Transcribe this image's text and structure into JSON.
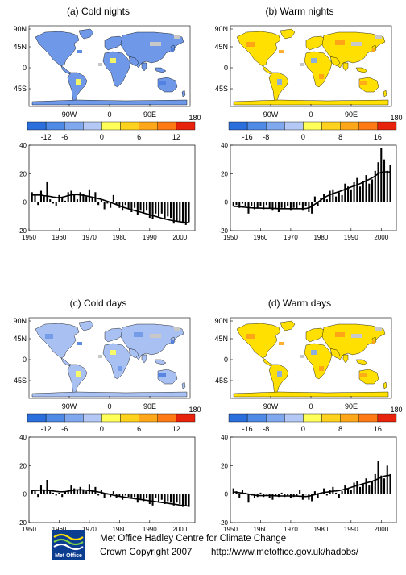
{
  "colors": {
    "cold_scale": [
      "#2a6fdb",
      "#4f8ae6",
      "#80a8ef",
      "#b3c8f5",
      "#ffff5a",
      "#ffd21f",
      "#ffa71a",
      "#ff7a14",
      "#e8230d"
    ],
    "warm_scale": [
      "#2a6fdb",
      "#4f8ae6",
      "#80a8ef",
      "#b3c8f5",
      "#ffff5a",
      "#ffd21f",
      "#ffa71a",
      "#ff7a14",
      "#e8230d"
    ],
    "blue_land": "#6f98e8",
    "blue_land_light": "#a9c1f2",
    "yellow_land": "#ffe000",
    "orange_land": "#ff9e18",
    "ocean": "#ffffff"
  },
  "panels": [
    {
      "title": "(a) Cold nights",
      "theme": "cold",
      "colorbar_ticks": [
        "-12",
        "-6",
        "0",
        "6",
        "12"
      ],
      "colorbar_end": "180",
      "lat_labels": [
        "90N",
        "45N",
        "0",
        "45S"
      ],
      "lon_labels": [
        "90W",
        "0",
        "90E"
      ],
      "chart_data": {
        "type": "bar",
        "x": [
          1951,
          1952,
          1953,
          1954,
          1955,
          1956,
          1957,
          1958,
          1959,
          1960,
          1961,
          1962,
          1963,
          1964,
          1965,
          1966,
          1967,
          1968,
          1969,
          1970,
          1971,
          1972,
          1973,
          1974,
          1975,
          1976,
          1977,
          1978,
          1979,
          1980,
          1981,
          1982,
          1983,
          1984,
          1985,
          1986,
          1987,
          1988,
          1989,
          1990,
          1991,
          1992,
          1993,
          1994,
          1995,
          1996,
          1997,
          1998,
          1999,
          2000,
          2001,
          2002,
          2003
        ],
        "values": [
          7,
          6,
          -2,
          8,
          4,
          14,
          2,
          -1,
          -3,
          5,
          3,
          1,
          7,
          8,
          6,
          2,
          7,
          6,
          4,
          9,
          3,
          7,
          -2,
          2,
          -5,
          -1,
          -4,
          5,
          -2,
          -4,
          -6,
          -2,
          -5,
          -7,
          -4,
          -9,
          -6,
          -8,
          -6,
          -11,
          -12,
          -8,
          -10,
          -8,
          -12,
          -10,
          -11,
          -15,
          -13,
          -14,
          -15,
          -16,
          -14
        ],
        "smooth": [
          5,
          5,
          5,
          5,
          4.5,
          4.3,
          4,
          3.6,
          3.3,
          3.2,
          3.5,
          4,
          4.6,
          5,
          5.3,
          5.3,
          5.1,
          4.8,
          4.4,
          4,
          3.5,
          3,
          2.5,
          2,
          1.3,
          0.6,
          -0.2,
          -1,
          -1.8,
          -2.6,
          -3.4,
          -4.1,
          -4.7,
          -5.3,
          -5.9,
          -6.5,
          -7,
          -7.6,
          -8.2,
          -8.8,
          -9.4,
          -10,
          -10.6,
          -11.2,
          -11.8,
          -12.3,
          -12.7,
          -13.1,
          -13.4,
          -13.7,
          -14,
          -14.2,
          -14.3
        ],
        "ylim": [
          -20,
          40
        ],
        "yticks": [
          "40",
          "20",
          "0",
          "-20"
        ],
        "xticks": [
          "1950",
          "1960",
          "1970",
          "1980",
          "1990",
          "2000"
        ]
      }
    },
    {
      "title": "(b) Warm nights",
      "theme": "warm",
      "colorbar_ticks": [
        "-16",
        "-8",
        "0",
        "8",
        "16"
      ],
      "colorbar_end": "180",
      "lat_labels": [
        "90N",
        "45N",
        "0",
        "45S"
      ],
      "lon_labels": [
        "90W",
        "0",
        "90E"
      ],
      "chart_data": {
        "type": "bar",
        "x": [
          1951,
          1952,
          1953,
          1954,
          1955,
          1956,
          1957,
          1958,
          1959,
          1960,
          1961,
          1962,
          1963,
          1964,
          1965,
          1966,
          1967,
          1968,
          1969,
          1970,
          1971,
          1972,
          1973,
          1974,
          1975,
          1976,
          1977,
          1978,
          1979,
          1980,
          1981,
          1982,
          1983,
          1984,
          1985,
          1986,
          1987,
          1988,
          1989,
          1990,
          1991,
          1992,
          1993,
          1994,
          1995,
          1996,
          1997,
          1998,
          1999,
          2000,
          2001,
          2002,
          2003
        ],
        "values": [
          -3,
          -2,
          -4,
          -1,
          -3,
          -8,
          -3,
          -5,
          -4,
          -3,
          -5,
          -2,
          -4,
          -6,
          -5,
          -7,
          -4,
          -5,
          -3,
          -6,
          -4,
          -5,
          -2,
          -6,
          -3,
          -7,
          -8,
          4,
          -3,
          3,
          6,
          2,
          8,
          9,
          4,
          7,
          5,
          13,
          11,
          9,
          14,
          17,
          11,
          15,
          19,
          13,
          16,
          22,
          28,
          38,
          30,
          22,
          26
        ],
        "smooth": [
          -3,
          -3,
          -3.2,
          -3.4,
          -3.6,
          -3.8,
          -4,
          -4.1,
          -4.2,
          -4.2,
          -4.3,
          -4.3,
          -4.3,
          -4.4,
          -4.5,
          -4.6,
          -4.6,
          -4.6,
          -4.6,
          -4.6,
          -4.6,
          -4.6,
          -4.6,
          -4.6,
          -4.5,
          -4,
          -3,
          -1.5,
          0,
          1.5,
          3,
          4.2,
          5.2,
          6,
          6.7,
          7.4,
          8.2,
          9,
          9.8,
          10.6,
          11.4,
          12.2,
          13,
          14,
          15,
          16,
          17,
          18.5,
          20,
          21,
          21.3,
          21.3,
          21.2
        ],
        "ylim": [
          -20,
          40
        ],
        "yticks": [
          "40",
          "20",
          "0",
          "-20"
        ],
        "xticks": [
          "1950",
          "1960",
          "1970",
          "1980",
          "1990",
          "2000"
        ]
      }
    },
    {
      "title": "(c) Cold days",
      "theme": "cold",
      "colorbar_ticks": [
        "-12",
        "-6",
        "0",
        "6",
        "12"
      ],
      "colorbar_end": "180",
      "lat_labels": [
        "90N",
        "45N",
        "0",
        "45S"
      ],
      "lon_labels": [
        "90W",
        "0",
        "90E"
      ],
      "chart_data": {
        "type": "bar",
        "x": [
          1951,
          1952,
          1953,
          1954,
          1955,
          1956,
          1957,
          1958,
          1959,
          1960,
          1961,
          1962,
          1963,
          1964,
          1965,
          1966,
          1967,
          1968,
          1969,
          1970,
          1971,
          1972,
          1973,
          1974,
          1975,
          1976,
          1977,
          1978,
          1979,
          1980,
          1981,
          1982,
          1983,
          1984,
          1985,
          1986,
          1987,
          1988,
          1989,
          1990,
          1991,
          1992,
          1993,
          1994,
          1995,
          1996,
          1997,
          1998,
          1999,
          2000,
          2001,
          2002,
          2003
        ],
        "values": [
          3,
          2,
          -2,
          6,
          3,
          10,
          2,
          1,
          -1,
          1,
          -2,
          2,
          3,
          6,
          4,
          3,
          5,
          3,
          2,
          7,
          2,
          5,
          -1,
          3,
          -3,
          0,
          -2,
          2,
          -3,
          -2,
          -4,
          -1,
          -2,
          -3,
          -2,
          -6,
          -4,
          -5,
          -3,
          -7,
          -8,
          -3,
          -6,
          -4,
          -7,
          -5,
          -6,
          -8,
          -6,
          -7,
          -9,
          -8,
          -9
        ],
        "smooth": [
          2.5,
          2.6,
          2.7,
          2.8,
          2.8,
          2.7,
          2.5,
          2.2,
          1.9,
          1.7,
          1.6,
          1.8,
          2.1,
          2.5,
          2.8,
          3,
          3,
          2.9,
          2.7,
          2.5,
          2.2,
          1.9,
          1.5,
          1.1,
          0.6,
          0.2,
          -0.3,
          -0.8,
          -1.2,
          -1.6,
          -2,
          -2.3,
          -2.6,
          -2.9,
          -3.2,
          -3.5,
          -3.8,
          -4.1,
          -4.4,
          -4.7,
          -5,
          -5.3,
          -5.6,
          -5.9,
          -6.2,
          -6.5,
          -6.8,
          -7.1,
          -7.4,
          -7.7,
          -8,
          -8.2,
          -8.4
        ],
        "ylim": [
          -20,
          40
        ],
        "yticks": [
          "40",
          "20",
          "0",
          "-20"
        ],
        "xticks": [
          "1950",
          "1960",
          "1970",
          "1980",
          "1990",
          "2000"
        ]
      }
    },
    {
      "title": "(d) Warm days",
      "theme": "warm",
      "colorbar_ticks": [
        "-16",
        "-8",
        "0",
        "8",
        "16"
      ],
      "colorbar_end": "180",
      "lat_labels": [
        "90N",
        "45N",
        "0",
        "45S"
      ],
      "lon_labels": [
        "90W",
        "0",
        "90E"
      ],
      "chart_data": {
        "type": "bar",
        "x": [
          1951,
          1952,
          1953,
          1954,
          1955,
          1956,
          1957,
          1958,
          1959,
          1960,
          1961,
          1962,
          1963,
          1964,
          1965,
          1966,
          1967,
          1968,
          1969,
          1970,
          1971,
          1972,
          1973,
          1974,
          1975,
          1976,
          1977,
          1978,
          1979,
          1980,
          1981,
          1982,
          1983,
          1984,
          1985,
          1986,
          1987,
          1988,
          1989,
          1990,
          1991,
          1992,
          1993,
          1994,
          1995,
          1996,
          1997,
          1998,
          1999,
          2000,
          2001,
          2002,
          2003
        ],
        "values": [
          4,
          2,
          -3,
          3,
          1,
          -6,
          -1,
          -3,
          -2,
          1,
          -2,
          0,
          -3,
          -4,
          -1,
          -2,
          1,
          -2,
          -1,
          -3,
          -2,
          -1,
          3,
          -4,
          0,
          -4,
          -5,
          2,
          -3,
          1,
          4,
          -1,
          3,
          5,
          1,
          -3,
          2,
          6,
          4,
          3,
          8,
          9,
          5,
          7,
          11,
          6,
          9,
          14,
          23,
          13,
          11,
          20,
          14
        ],
        "smooth": [
          1.5,
          1.3,
          1,
          0.7,
          0.4,
          0,
          -0.4,
          -0.8,
          -1,
          -1.1,
          -1.1,
          -1,
          -1,
          -1.1,
          -1.2,
          -1.3,
          -1.3,
          -1.3,
          -1.3,
          -1.3,
          -1.3,
          -1.4,
          -1.5,
          -1.6,
          -1.7,
          -1.5,
          -1,
          -0.4,
          0.2,
          0.7,
          1.1,
          1.4,
          1.7,
          2,
          2.2,
          2.5,
          2.9,
          3.4,
          4,
          4.7,
          5.4,
          6,
          6.6,
          7.2,
          7.8,
          8.4,
          9,
          9.8,
          10.8,
          11.8,
          12.6,
          13,
          13.2
        ],
        "ylim": [
          -20,
          40
        ],
        "yticks": [
          "40",
          "20",
          "0",
          "-20"
        ],
        "xticks": [
          "1950",
          "1960",
          "1970",
          "1980",
          "1990",
          "2000"
        ]
      }
    }
  ],
  "footer": {
    "logo_text": "Met Office",
    "line1": "Met Office Hadley Centre for Climate Change",
    "line2": "Crown Copyright 2007",
    "url": "http://www.metoffice.gov.uk/hadobs/"
  }
}
